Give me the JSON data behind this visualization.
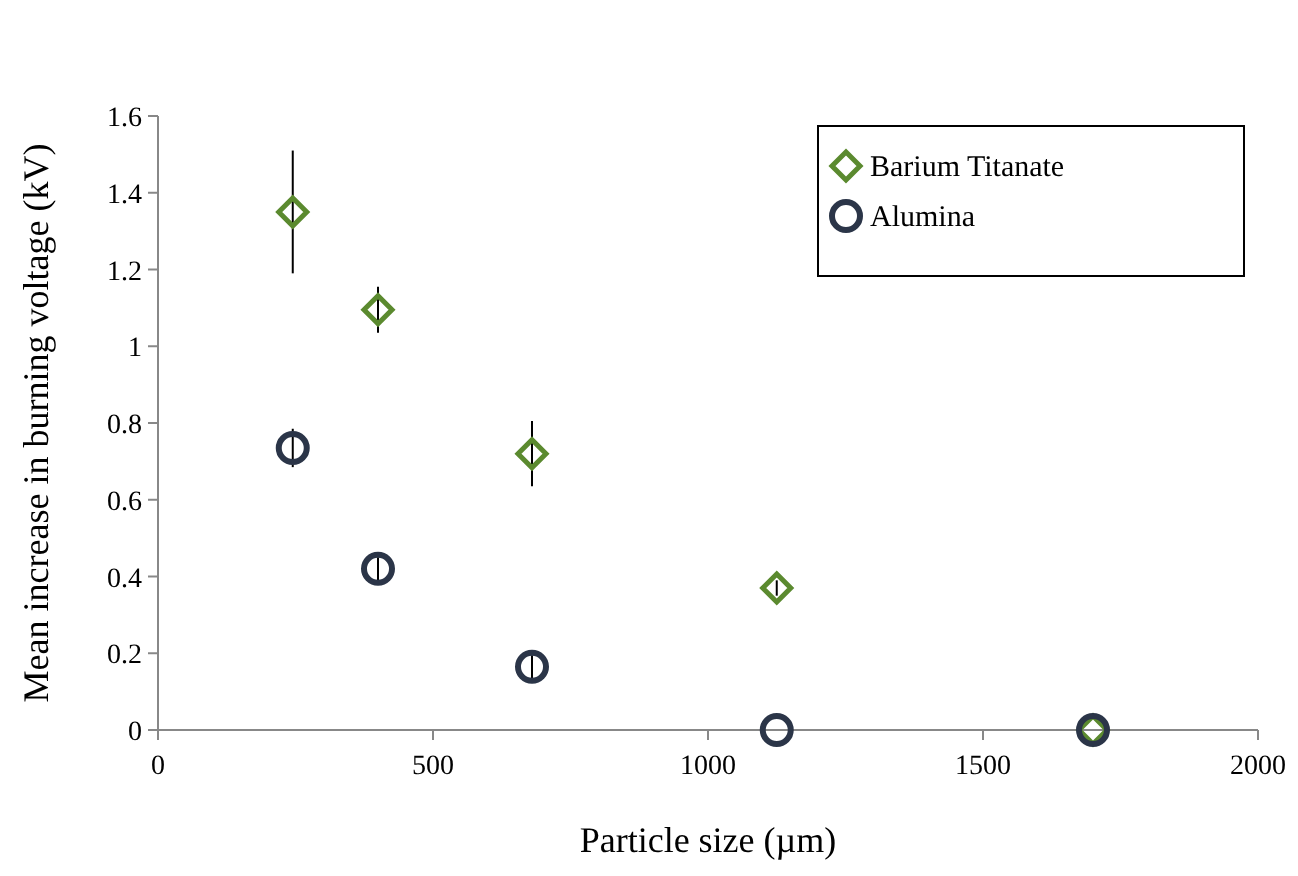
{
  "chart_data": {
    "type": "scatter",
    "xlabel": "Particle size (µm)",
    "ylabel": "Mean increase in burning voltage (kV)",
    "x": [
      245,
      400,
      680,
      1125,
      1700
    ],
    "xlim": [
      0,
      2000
    ],
    "xticks": [
      0,
      500,
      1000,
      1500,
      2000
    ],
    "ylim": [
      0,
      1.6
    ],
    "yticks": [
      0,
      {
        "value": 0.2,
        "label": "0.2"
      },
      {
        "value": 0.4,
        "label": "0.4"
      },
      {
        "value": 0.6,
        "label": "0.6"
      },
      {
        "value": 0.8,
        "label": "0.8"
      },
      1,
      {
        "value": 1.2,
        "label": "1.2"
      },
      {
        "value": 1.4,
        "label": "1.4"
      },
      {
        "value": 1.6,
        "label": "1.6"
      }
    ],
    "grid": false,
    "legend": "top right",
    "series": [
      {
        "name": "Barium Titanate",
        "color": "#5b8a2f",
        "marker": "diamond",
        "values": [
          1.35,
          1.095,
          0.72,
          0.37,
          0
        ],
        "errors": [
          0.16,
          0.06,
          0.085,
          0.02,
          null
        ]
      },
      {
        "name": "Alumina",
        "color": "#2b3548",
        "marker": "circle",
        "values": [
          0.735,
          0.42,
          0.165,
          0,
          0
        ],
        "errors": [
          0.05,
          0.03,
          0.03,
          null,
          null
        ]
      }
    ]
  }
}
